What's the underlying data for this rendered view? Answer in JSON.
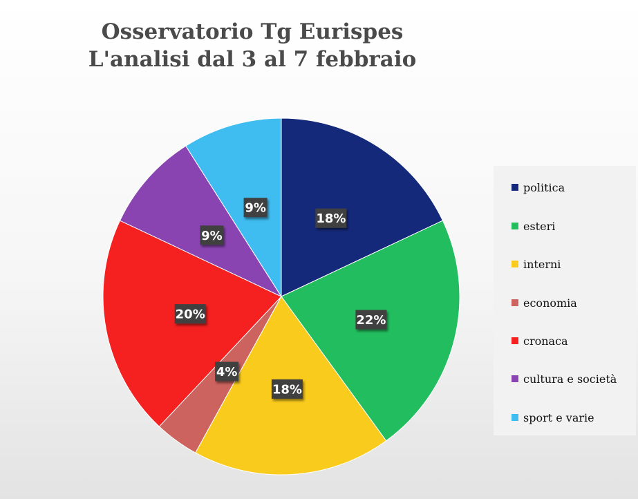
{
  "chart_data": {
    "type": "pie",
    "title": [
      "Osservatorio Tg Eurispes",
      "L'analisi dal 3 al 7 febbraio"
    ],
    "categories": [
      "politica",
      "esteri",
      "interni",
      "economia",
      "cronaca",
      "cultura e società",
      "sport e varie"
    ],
    "values": [
      18,
      22,
      18,
      4,
      20,
      9,
      9
    ],
    "labels": [
      "18%",
      "22%",
      "18%",
      "4%",
      "20%",
      "9%",
      "9%"
    ],
    "colors": [
      "#15297a",
      "#22bd5e",
      "#f9cb1d",
      "#cc635e",
      "#f52020",
      "#8a44b2",
      "#3fbcf0"
    ],
    "legend_position": "right",
    "start_angle": "12 o'clock",
    "direction": "clockwise"
  }
}
